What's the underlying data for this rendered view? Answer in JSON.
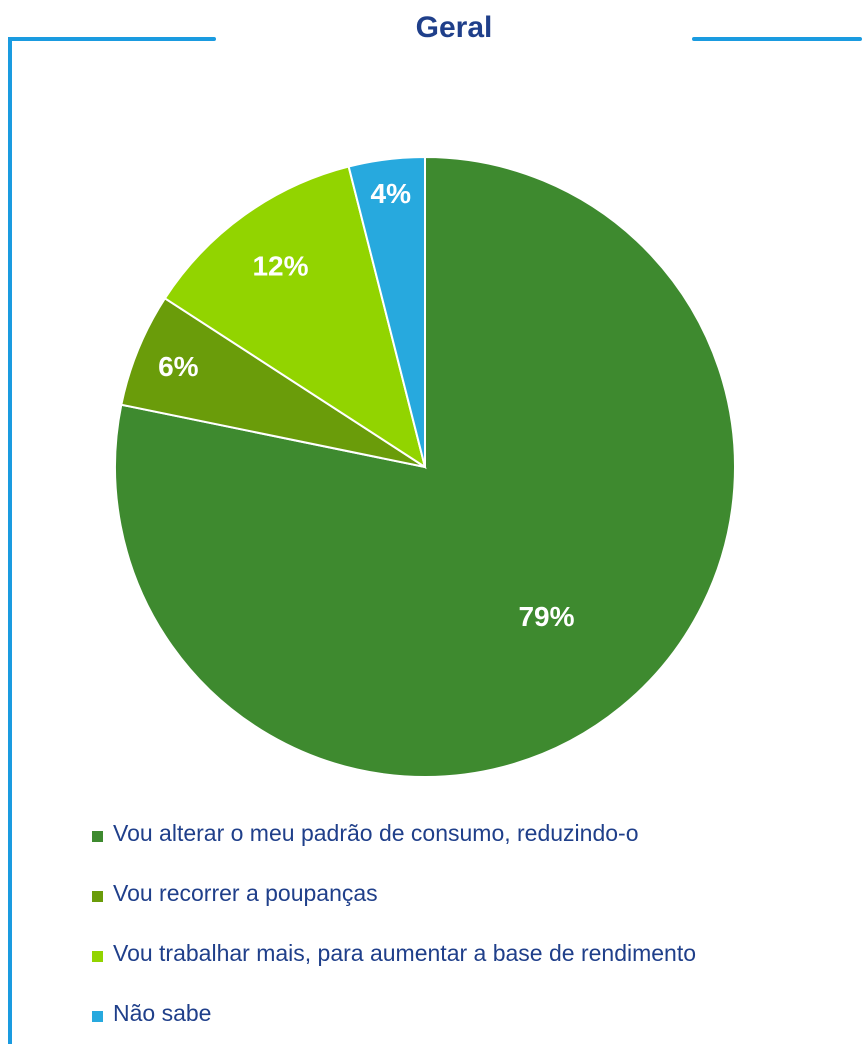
{
  "chart_data": {
    "type": "pie",
    "title": "Geral",
    "categories": [
      "Vou alterar o meu padrão de consumo, reduzindo-o",
      "Vou recorrer a poupanças",
      "Vou trabalhar mais, para aumentar a base de rendimento",
      "Não sabe"
    ],
    "values": [
      79,
      6,
      12,
      4
    ],
    "data_labels": [
      "79%",
      "6%",
      "12%",
      "4%"
    ],
    "colors": [
      "#3e8a2f",
      "#6a9c0a",
      "#92d400",
      "#27a9de"
    ],
    "legend_position": "bottom"
  },
  "frame_color": "#1a9be0"
}
